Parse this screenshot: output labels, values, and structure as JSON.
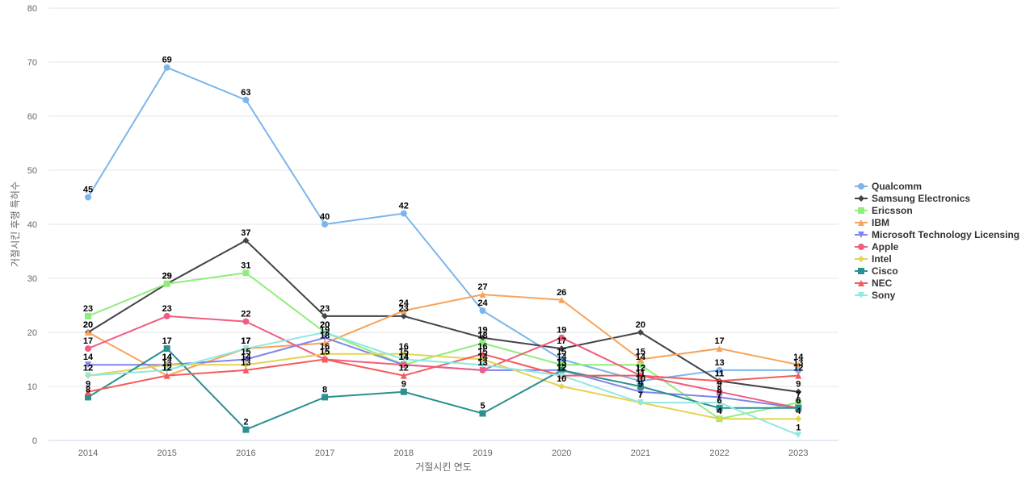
{
  "chart_data": {
    "type": "line",
    "xlabel": "거절시킨 연도",
    "ylabel": "거절시킨 후행 특허수",
    "x": [
      "2014",
      "2015",
      "2016",
      "2017",
      "2018",
      "2019",
      "2020",
      "2021",
      "2022",
      "2023"
    ],
    "ylim": [
      0,
      80
    ],
    "yticks": [
      0,
      10,
      20,
      30,
      40,
      50,
      60,
      70,
      80
    ],
    "grid": true,
    "legend_position": "right",
    "series": [
      {
        "name": "Qualcomm",
        "color": "#7cb5ec",
        "marker": "circle",
        "values": [
          45,
          69,
          63,
          40,
          42,
          24,
          15,
          11,
          13,
          13
        ]
      },
      {
        "name": "Samsung Electronics",
        "color": "#434348",
        "marker": "diamond",
        "values": [
          20,
          29,
          37,
          23,
          23,
          19,
          17,
          20,
          11,
          9
        ]
      },
      {
        "name": "Ericsson",
        "color": "#90ed7d",
        "marker": "square",
        "values": [
          23,
          29,
          31,
          20,
          14,
          18,
          14,
          14,
          4,
          7
        ]
      },
      {
        "name": "IBM",
        "color": "#f7a35c",
        "marker": "triangle",
        "values": [
          20,
          12,
          17,
          18,
          24,
          27,
          26,
          15,
          17,
          14
        ]
      },
      {
        "name": "Microsoft Technology Licensing",
        "color": "#8085e9",
        "marker": "triangle-down",
        "values": [
          14,
          14,
          15,
          19,
          14,
          13,
          13,
          9,
          8,
          6
        ]
      },
      {
        "name": "Apple",
        "color": "#f15c80",
        "marker": "circle",
        "values": [
          17,
          23,
          22,
          15,
          14,
          13,
          19,
          12,
          9,
          6
        ]
      },
      {
        "name": "Intel",
        "color": "#e4d354",
        "marker": "diamond",
        "values": [
          12,
          14,
          14,
          16,
          16,
          15,
          10,
          7,
          4,
          4
        ]
      },
      {
        "name": "Cisco",
        "color": "#2b908f",
        "marker": "square",
        "values": [
          8,
          17,
          2,
          8,
          9,
          5,
          13,
          10,
          6,
          6
        ]
      },
      {
        "name": "NEC",
        "color": "#f45b5b",
        "marker": "triangle",
        "values": [
          9,
          12,
          13,
          15,
          12,
          16,
          12,
          12,
          11,
          12
        ]
      },
      {
        "name": "Sony",
        "color": "#91e8e1",
        "marker": "triangle-down",
        "values": [
          12,
          13,
          17,
          20,
          15,
          14,
          12,
          7,
          7,
          1
        ]
      }
    ]
  }
}
